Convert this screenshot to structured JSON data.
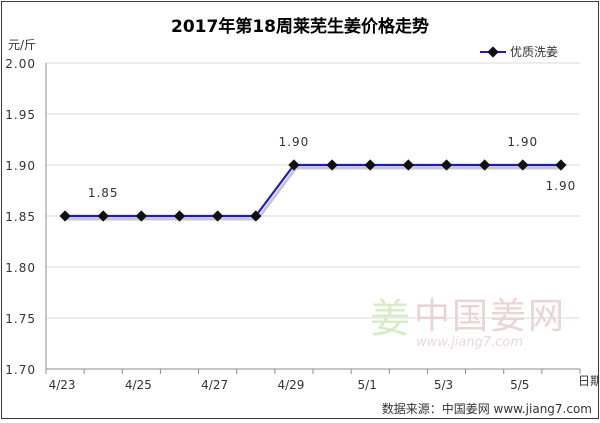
{
  "chart_data": {
    "type": "line",
    "title": "2017年第18周莱芜生姜价格走势",
    "ylabel": "元/斤",
    "xlabel": "日期",
    "ylim": [
      1.7,
      2.0
    ],
    "yticks": [
      "2.00",
      "1.95",
      "1.90",
      "1.85",
      "1.80",
      "1.75",
      "1.70"
    ],
    "ytick_values": [
      2.0,
      1.95,
      1.9,
      1.85,
      1.8,
      1.75,
      1.7
    ],
    "x": [
      "4/23",
      "4/24",
      "4/25",
      "4/26",
      "4/27",
      "4/28",
      "4/29",
      "4/30",
      "5/1",
      "5/2",
      "5/3",
      "5/4",
      "5/5",
      "5/6"
    ],
    "xtick_labels": [
      "4/23",
      "",
      "4/25",
      "",
      "4/27",
      "",
      "4/29",
      "",
      "5/1",
      "",
      "5/3",
      "",
      "5/5",
      ""
    ],
    "series": [
      {
        "name": "优质洗姜",
        "values": [
          1.85,
          1.85,
          1.85,
          1.85,
          1.85,
          1.85,
          1.9,
          1.9,
          1.9,
          1.9,
          1.9,
          1.9,
          1.9,
          1.9
        ],
        "color": "#1a1ad6"
      }
    ],
    "annotations": [
      {
        "x": "4/24",
        "value": 1.85,
        "text": "1.85",
        "position": "above"
      },
      {
        "x": "4/29",
        "value": 1.9,
        "text": "1.90",
        "position": "above"
      },
      {
        "x": "5/5",
        "value": 1.9,
        "text": "1.90",
        "position": "above"
      },
      {
        "x": "5/6",
        "value": 1.9,
        "text": "1.90",
        "position": "below"
      }
    ],
    "grid": true,
    "legend": "top-right"
  },
  "watermark": {
    "logo_char": "姜",
    "site_name": "中国姜网",
    "site_url": "www.jiang7.com"
  },
  "source_note": "数据来源：中国姜网  www.jiang7.com",
  "colors": {
    "line": "#1a1ad6",
    "marker": "#111111",
    "grid": "#d9d9d9",
    "axis": "#8c8c8c",
    "watermark_green": "#cfe7b9",
    "watermark_red": "#f0cccc"
  }
}
